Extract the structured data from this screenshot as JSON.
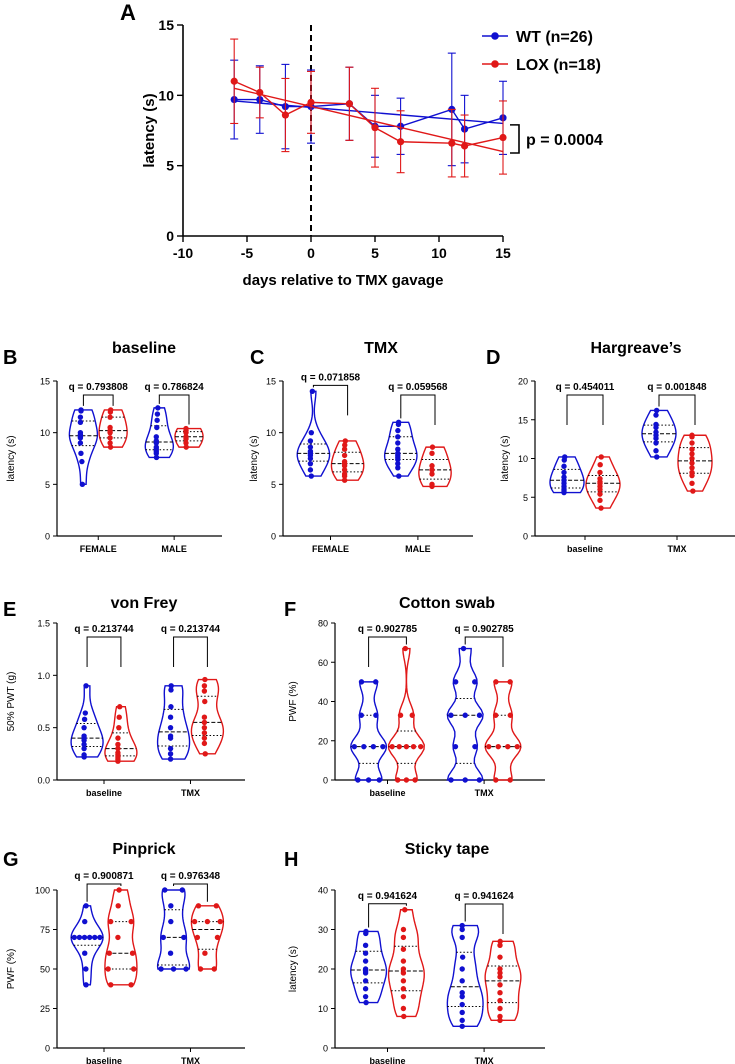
{
  "colors": {
    "wt": "#1010d0",
    "lox": "#e01818",
    "axis": "#000000"
  },
  "chart_data": [
    {
      "id": "A",
      "type": "line",
      "panel_label": "A",
      "xlabel": "days relative to TMX gavage",
      "ylabel": "latency (s)",
      "xlim": [
        -10,
        15
      ],
      "ylim": [
        0,
        15
      ],
      "xticks": [
        "-10",
        "-5",
        "0",
        "5",
        "10",
        "15"
      ],
      "yticks": [
        "0",
        "5",
        "10",
        "15"
      ],
      "vline_x": 0,
      "legend": [
        "WT (n=26)",
        "LOX (n=18)"
      ],
      "annotation": "p = 0.0004",
      "series": [
        {
          "name": "WT (n=26)",
          "x": [
            -6,
            -4,
            -2,
            0,
            3,
            5,
            7,
            11,
            12,
            15
          ],
          "y": [
            9.7,
            9.7,
            9.2,
            9.2,
            9.4,
            7.8,
            7.8,
            9.0,
            7.6,
            8.4
          ],
          "err": [
            2.8,
            2.4,
            3.0,
            2.6,
            2.6,
            2.2,
            2.0,
            4.0,
            2.4,
            2.6
          ],
          "trend": [
            9.6,
            8.0
          ]
        },
        {
          "name": "LOX (n=18)",
          "x": [
            -6,
            -4,
            -2,
            0,
            3,
            5,
            7,
            11,
            12,
            15
          ],
          "y": [
            11.0,
            10.2,
            8.6,
            9.5,
            9.4,
            7.7,
            6.7,
            6.6,
            6.4,
            7.0
          ],
          "err": [
            3.0,
            1.8,
            2.6,
            2.2,
            2.6,
            2.8,
            2.2,
            2.4,
            2.2,
            2.6
          ],
          "trend": [
            10.5,
            6.0
          ]
        }
      ]
    },
    {
      "id": "B",
      "type": "violin",
      "panel_label": "B",
      "title": "baseline",
      "ylabel": "latency (s)",
      "ylim": [
        0,
        15
      ],
      "yticks": [
        "0",
        "5",
        "10",
        "15"
      ],
      "groups": [
        {
          "label": "FEMALE",
          "q": "q = 0.793808",
          "wt": [
            5.0,
            7.2,
            8.0,
            9.0,
            9.5,
            9.6,
            9.8,
            10.0,
            11.0,
            11.5,
            12.1,
            12.2
          ],
          "lox": [
            8.6,
            9.0,
            9.5,
            10.0,
            10.2,
            10.5,
            11.5,
            12.0,
            12.2
          ]
        },
        {
          "label": "MALE",
          "q": "q = 0.786824",
          "wt": [
            7.6,
            8.0,
            8.2,
            8.4,
            8.6,
            9.0,
            9.2,
            9.6,
            10.5,
            11.2,
            11.8,
            12.4
          ],
          "lox": [
            8.6,
            9.0,
            9.4,
            9.6,
            10.0,
            10.2,
            10.4
          ]
        }
      ]
    },
    {
      "id": "C",
      "type": "violin",
      "panel_label": "C",
      "title": "TMX",
      "ylabel": "latency (s)",
      "ylim": [
        0,
        15
      ],
      "yticks": [
        "0",
        "5",
        "10",
        "15"
      ],
      "groups": [
        {
          "label": "FEMALE",
          "q": "q = 0.071858",
          "wt": [
            5.8,
            6.4,
            7.0,
            7.5,
            7.8,
            8.0,
            8.2,
            8.6,
            9.2,
            10.0,
            14.0
          ],
          "lox": [
            5.4,
            5.8,
            6.0,
            6.4,
            6.8,
            7.0,
            7.2,
            7.8,
            8.4,
            8.8,
            9.2
          ]
        },
        {
          "label": "MALE",
          "q": "q = 0.059568",
          "wt": [
            5.8,
            6.6,
            7.0,
            7.4,
            7.6,
            7.8,
            8.0,
            8.4,
            9.0,
            9.6,
            10.2,
            10.8,
            11.0
          ],
          "lox": [
            4.8,
            5.0,
            6.0,
            6.4,
            6.8,
            8.0,
            8.6
          ]
        }
      ]
    },
    {
      "id": "D",
      "type": "violin",
      "panel_label": "D",
      "title": "Hargreave’s",
      "ylabel": "latency (s)",
      "ylim": [
        0,
        20
      ],
      "yticks": [
        "0",
        "5",
        "10",
        "15",
        "20"
      ],
      "groups": [
        {
          "label": "baseline",
          "q": "q = 0.454011",
          "wt": [
            5.6,
            5.8,
            6.0,
            6.4,
            6.8,
            7.2,
            7.6,
            8.2,
            9.0,
            9.8,
            10.2
          ],
          "lox": [
            3.6,
            4.6,
            5.4,
            6.0,
            6.4,
            6.8,
            7.0,
            7.4,
            8.2,
            9.2,
            10.2
          ]
        },
        {
          "label": "TMX",
          "q": "q = 0.001848",
          "wt": [
            10.2,
            11.0,
            12.0,
            12.6,
            13.0,
            13.4,
            14.0,
            14.4,
            15.6,
            16.2
          ],
          "lox": [
            5.8,
            6.8,
            7.8,
            8.2,
            8.8,
            9.4,
            10.0,
            10.6,
            11.2,
            12.0,
            12.8,
            13.0
          ]
        }
      ]
    },
    {
      "id": "E",
      "type": "violin",
      "panel_label": "E",
      "title": "von Frey",
      "ylabel": "50% PWT (g)",
      "ylim": [
        0,
        1.5
      ],
      "yticks": [
        "0.0",
        "0.5",
        "1.0",
        "1.5"
      ],
      "groups": [
        {
          "label": "baseline",
          "q": "q = 0.213744",
          "wt": [
            0.22,
            0.24,
            0.3,
            0.34,
            0.38,
            0.4,
            0.42,
            0.5,
            0.58,
            0.64,
            0.9
          ],
          "lox": [
            0.18,
            0.2,
            0.22,
            0.24,
            0.26,
            0.3,
            0.34,
            0.4,
            0.5,
            0.6,
            0.7
          ]
        },
        {
          "label": "TMX",
          "q": "q = 0.213744",
          "wt": [
            0.2,
            0.25,
            0.3,
            0.4,
            0.42,
            0.5,
            0.6,
            0.7,
            0.86,
            0.9
          ],
          "lox": [
            0.25,
            0.35,
            0.4,
            0.45,
            0.5,
            0.55,
            0.6,
            0.75,
            0.85,
            0.9,
            0.96
          ]
        }
      ]
    },
    {
      "id": "F",
      "type": "violin",
      "panel_label": "F",
      "title": "Cotton swab",
      "ylabel": "PWF (%)",
      "ylim": [
        0,
        80
      ],
      "yticks": [
        "0",
        "20",
        "40",
        "60",
        "80"
      ],
      "groups": [
        {
          "label": "baseline",
          "q": "q = 0.902785",
          "wt": [
            0,
            0,
            0,
            17,
            17,
            17,
            17,
            33,
            33,
            50,
            50
          ],
          "lox": [
            0,
            0,
            0,
            17,
            17,
            17,
            17,
            17,
            33,
            33,
            67
          ]
        },
        {
          "label": "TMX",
          "q": "q = 0.902785",
          "wt": [
            0,
            0,
            0,
            17,
            17,
            33,
            33,
            33,
            50,
            50,
            67
          ],
          "lox": [
            0,
            0,
            17,
            17,
            17,
            17,
            33,
            33,
            50,
            50
          ]
        }
      ]
    },
    {
      "id": "G",
      "type": "violin",
      "panel_label": "G",
      "title": "Pinprick",
      "ylabel": "PWF (%)",
      "ylim": [
        0,
        100
      ],
      "yticks": [
        "0",
        "25",
        "50",
        "75",
        "100"
      ],
      "groups": [
        {
          "label": "baseline",
          "q": "q = 0.900871",
          "wt": [
            40,
            50,
            60,
            70,
            70,
            70,
            70,
            70,
            70,
            80,
            90
          ],
          "lox": [
            40,
            40,
            50,
            50,
            60,
            60,
            70,
            80,
            80,
            90,
            100
          ]
        },
        {
          "label": "TMX",
          "q": "q = 0.976348",
          "wt": [
            50,
            50,
            50,
            60,
            70,
            70,
            80,
            90,
            100,
            100
          ],
          "lox": [
            50,
            50,
            60,
            70,
            70,
            80,
            80,
            80,
            90,
            90
          ]
        }
      ]
    },
    {
      "id": "H",
      "type": "violin",
      "panel_label": "H",
      "title": "Sticky tape",
      "ylabel": "latency (s)",
      "ylim": [
        0,
        40
      ],
      "yticks": [
        "0",
        "10",
        "20",
        "30",
        "40"
      ],
      "groups": [
        {
          "label": "baseline",
          "q": "q = 0.941624",
          "wt": [
            11.5,
            13,
            15,
            17,
            19,
            19.5,
            20,
            22,
            24,
            26,
            29,
            29.5
          ],
          "lox": [
            8,
            10,
            13,
            15,
            17,
            19,
            20,
            22,
            25,
            28,
            30,
            35
          ]
        },
        {
          "label": "TMX",
          "q": "q = 0.941624",
          "wt": [
            5.5,
            7,
            9,
            11,
            13,
            14,
            17,
            20,
            23,
            28,
            30,
            31
          ],
          "lox": [
            7,
            8,
            10,
            12,
            14,
            16,
            18,
            19,
            20,
            23,
            26,
            27
          ]
        }
      ]
    }
  ]
}
